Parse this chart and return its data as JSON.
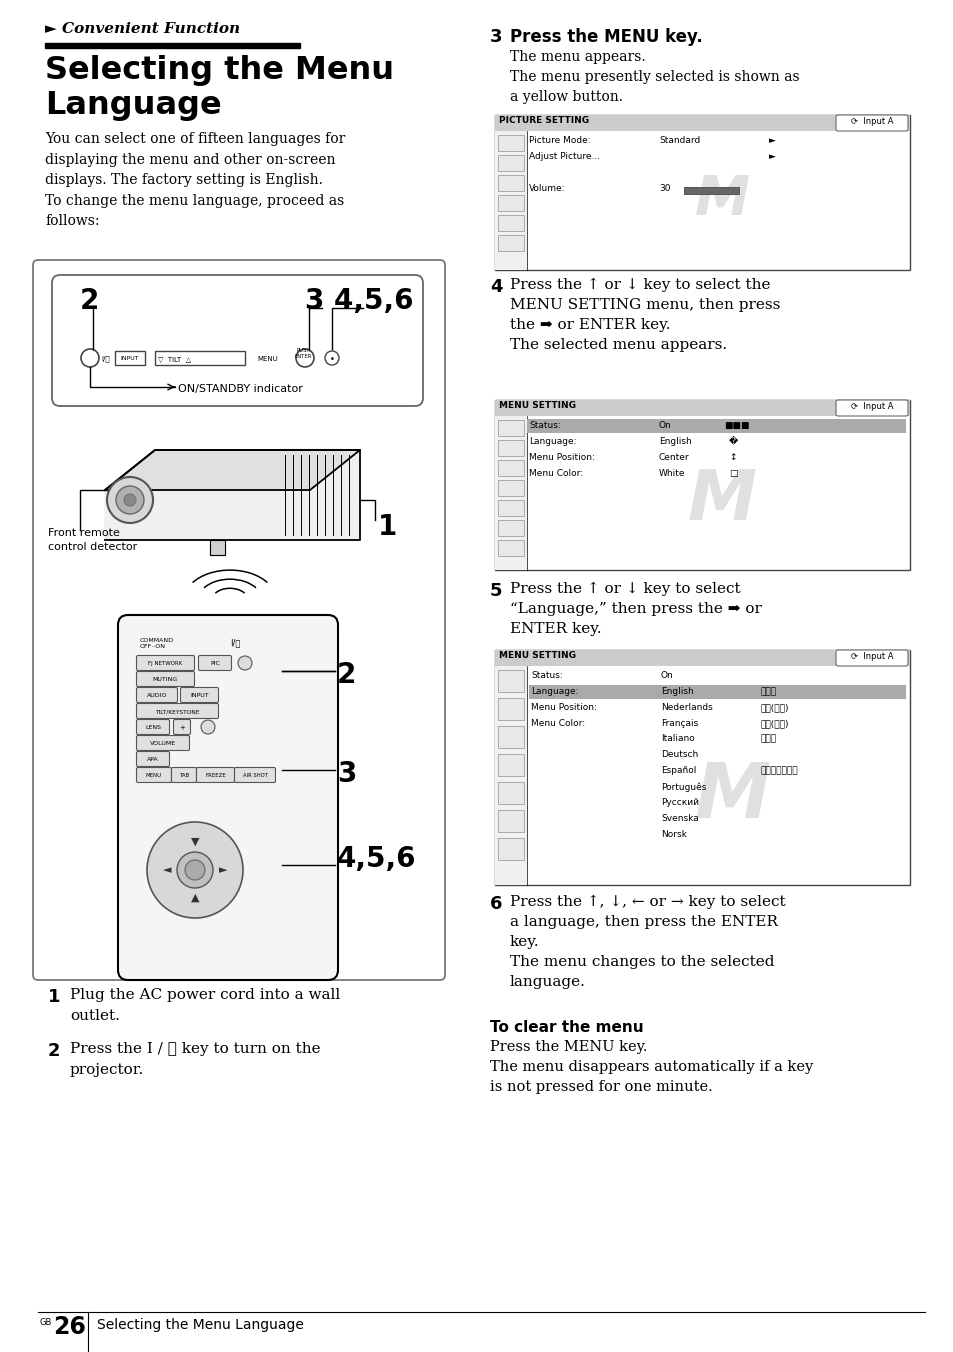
{
  "bg_color": "#ffffff",
  "header_text": "► Convenient Function",
  "title_line1": "Selecting the Menu",
  "title_line2": "Language",
  "intro_text": "You can select one of fifteen languages for\ndisplaying the menu and other on-screen\ndisplays. The factory setting is English.\nTo change the menu language, proceed as\nfollows:",
  "step1_num": "1",
  "step1_text": "Plug the AC power cord into a wall\noutlet.",
  "step2_num": "2",
  "step2_text": "Press the I / ⏻ key to turn on the\nprojector.",
  "step3_num": "3",
  "step3_text": "Press the MENU key.",
  "step3_sub": "The menu appears.\nThe menu presently selected is shown as\na yellow button.",
  "step4_num": "4",
  "step4_text": "Press the ↑ or ↓ key to select the\nMENU SETTING menu, then press\nthe ➡ or ENTER key.\nThe selected menu appears.",
  "step5_num": "5",
  "step5_text": "Press the ↑ or ↓ key to select\n“Language,” then press the ➡ or\nENTER key.",
  "step6_num": "6",
  "step6_text": "Press the ↑, ↓, ← or → key to select\na language, then press the ENTER\nkey.\nThe menu changes to the selected\nlanguage.",
  "clear_title": "To clear the menu",
  "clear_text": "Press the MENU key.\nThe menu disappears automatically if a key\nis not pressed for one minute.",
  "footer_page": "26",
  "footer_text": "Selecting the Menu Language",
  "footer_gb": "GB"
}
